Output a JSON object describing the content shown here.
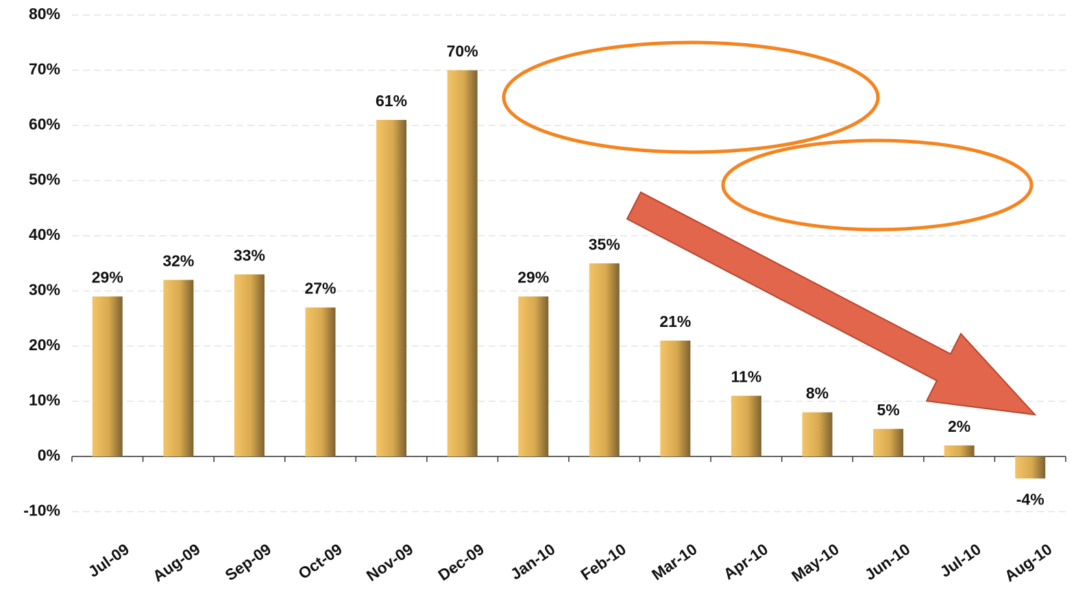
{
  "chart_data": {
    "type": "bar",
    "categories": [
      "Jul-09",
      "Aug-09",
      "Sep-09",
      "Oct-09",
      "Nov-09",
      "Dec-09",
      "Jan-10",
      "Feb-10",
      "Mar-10",
      "Apr-10",
      "May-10",
      "Jun-10",
      "Jul-10",
      "Aug-10"
    ],
    "values": [
      29,
      32,
      33,
      27,
      61,
      70,
      29,
      35,
      21,
      11,
      8,
      5,
      2,
      -4
    ],
    "value_labels": [
      "29%",
      "32%",
      "33%",
      "27%",
      "61%",
      "70%",
      "29%",
      "35%",
      "21%",
      "11%",
      "8%",
      "5%",
      "2%",
      "-4%"
    ],
    "color": "#f3c467",
    "ylim": [
      -10,
      80
    ],
    "yticks": [
      {
        "value": -10,
        "label": "-10%"
      },
      {
        "value": 0,
        "label": "0%"
      },
      {
        "value": 10,
        "label": "10%"
      },
      {
        "value": 20,
        "label": "20%"
      },
      {
        "value": 30,
        "label": "30%"
      },
      {
        "value": 40,
        "label": "40%"
      },
      {
        "value": 50,
        "label": "50%"
      },
      {
        "value": 60,
        "label": "60%"
      },
      {
        "value": 70,
        "label": "70%"
      },
      {
        "value": 80,
        "label": "80%"
      }
    ],
    "grid": true
  }
}
